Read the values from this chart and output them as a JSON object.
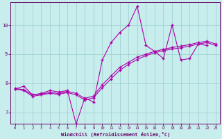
{
  "xlabel": "Windchill (Refroidissement éolien,°C)",
  "xlim": [
    -0.5,
    23.5
  ],
  "ylim": [
    6.6,
    10.8
  ],
  "yticks": [
    7,
    8,
    9,
    10
  ],
  "xticks": [
    0,
    1,
    2,
    3,
    4,
    5,
    6,
    7,
    8,
    9,
    10,
    11,
    12,
    13,
    14,
    15,
    16,
    17,
    18,
    19,
    20,
    21,
    22,
    23
  ],
  "background_color": "#c8eded",
  "line_color": "#aa00aa",
  "grid_color": "#99cccc",
  "line1_x": [
    0,
    1,
    2,
    3,
    4,
    5,
    6,
    7,
    8,
    9,
    10,
    11,
    12,
    13,
    14,
    15,
    16,
    17,
    18,
    19,
    20,
    21,
    22
  ],
  "line1_y": [
    7.8,
    7.9,
    7.6,
    7.65,
    7.75,
    7.7,
    7.75,
    6.6,
    7.5,
    7.35,
    8.8,
    9.4,
    9.75,
    10.0,
    10.65,
    9.3,
    9.1,
    8.85,
    10.0,
    8.8,
    8.85,
    9.35,
    9.3
  ],
  "line2_x": [
    0,
    1,
    2,
    3,
    4,
    5,
    6,
    7,
    8,
    9,
    10,
    11,
    12,
    13,
    14,
    15,
    16,
    17,
    18,
    19,
    20,
    21,
    22,
    23
  ],
  "line2_y": [
    7.8,
    7.75,
    7.55,
    7.6,
    7.65,
    7.62,
    7.68,
    7.6,
    7.42,
    7.5,
    7.85,
    8.15,
    8.45,
    8.65,
    8.82,
    8.95,
    9.05,
    9.12,
    9.18,
    9.22,
    9.28,
    9.35,
    9.4,
    9.3
  ],
  "line3_x": [
    0,
    1,
    2,
    3,
    4,
    5,
    6,
    7,
    8,
    9,
    10,
    11,
    12,
    13,
    14,
    15,
    16,
    17,
    18,
    19,
    20,
    21,
    22,
    23
  ],
  "line3_y": [
    7.82,
    7.78,
    7.6,
    7.63,
    7.68,
    7.65,
    7.72,
    7.65,
    7.48,
    7.56,
    7.95,
    8.25,
    8.55,
    8.72,
    8.9,
    9.0,
    9.1,
    9.17,
    9.23,
    9.28,
    9.33,
    9.4,
    9.45,
    9.35
  ]
}
